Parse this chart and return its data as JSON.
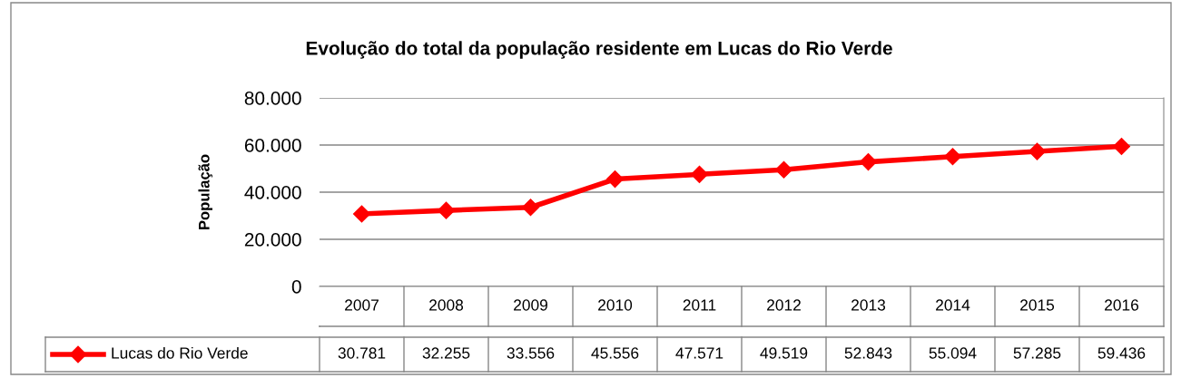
{
  "chart_data": {
    "type": "line",
    "title": "Evolução do total da população residente em Lucas do Rio Verde",
    "ylabel": "População",
    "categories": [
      "2007",
      "2008",
      "2009",
      "2010",
      "2011",
      "2012",
      "2013",
      "2014",
      "2015",
      "2016"
    ],
    "series": [
      {
        "name": "Lucas do Rio Verde",
        "color": "#ff0000",
        "values": [
          30781,
          32255,
          33556,
          45556,
          47571,
          49519,
          52843,
          55094,
          57285,
          59436
        ],
        "value_labels": [
          "30.781",
          "32.255",
          "33.556",
          "45.556",
          "47.571",
          "49.519",
          "52.843",
          "55.094",
          "57.285",
          "59.436"
        ]
      }
    ],
    "ylim": [
      0,
      80000
    ],
    "yticks": [
      0,
      {
        "value": 20000,
        "label": "20.000"
      },
      {
        "value": 40000,
        "label": "40.000"
      },
      {
        "value": 60000,
        "label": "60.000"
      },
      {
        "value": 80000,
        "label": "80.000"
      }
    ],
    "grid": "y",
    "legend": "bottom",
    "marker": "diamond",
    "line_style": "solid"
  }
}
